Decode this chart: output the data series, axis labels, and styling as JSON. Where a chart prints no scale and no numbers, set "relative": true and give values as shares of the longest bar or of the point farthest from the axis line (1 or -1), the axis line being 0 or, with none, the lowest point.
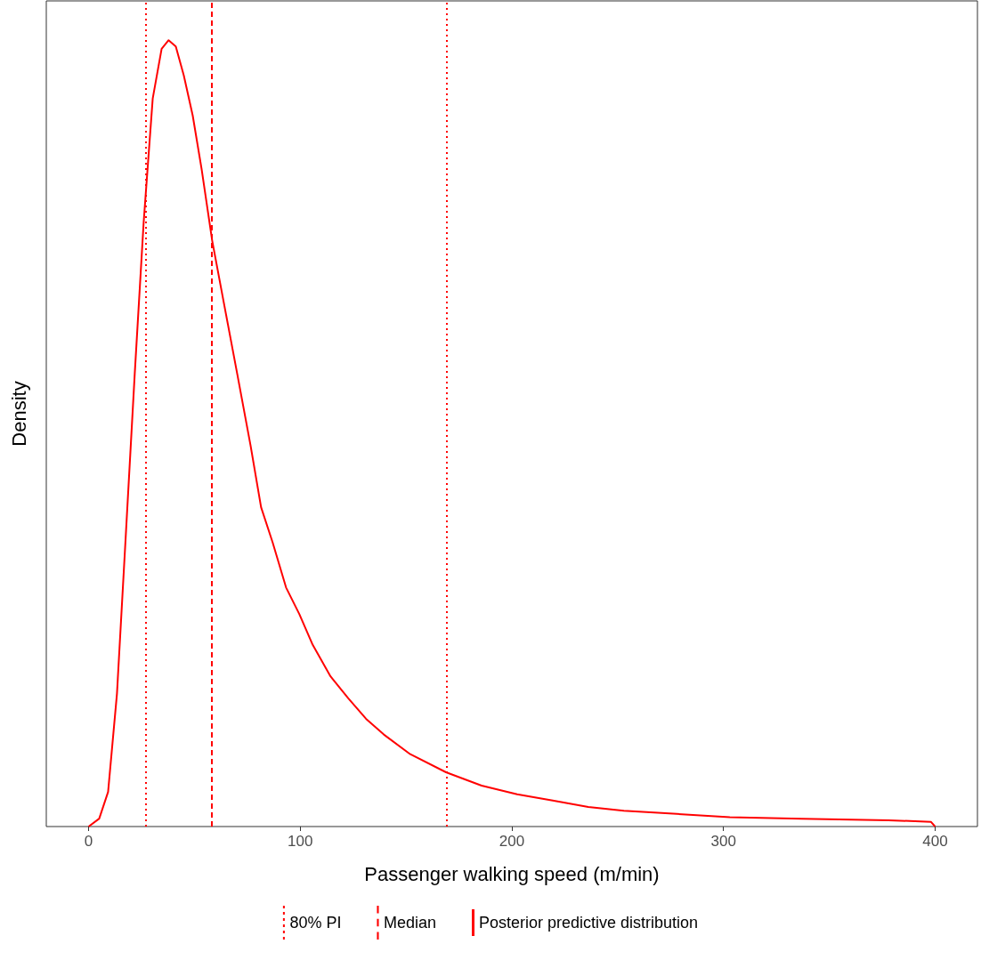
{
  "chart_data": {
    "type": "line",
    "relative": true,
    "xlabel": "Passenger walking speed (m/min)",
    "ylabel": "Density",
    "xlim": [
      -20,
      420
    ],
    "xticks": [
      0,
      100,
      200,
      300,
      400
    ],
    "grid": false,
    "legend": "bottom",
    "marker": "none",
    "tick_labels": "x",
    "series": [
      {
        "name": "Posterior predictive distribution",
        "color": "#ff0000",
        "line_style": "solid",
        "x": [
          0,
          5,
          9.2,
          13.4,
          17.6,
          21.8,
          26,
          30.3,
          34.5,
          37.8,
          41.2,
          45,
          49.2,
          53.4,
          58.4,
          63.9,
          70.2,
          76.5,
          81.5,
          87,
          93.3,
          99.6,
          105.9,
          114.3,
          122.7,
          131.1,
          139.5,
          152,
          168.9,
          185.7,
          202.5,
          219.3,
          236.1,
          252.9,
          278,
          303,
          337,
          378,
          398,
          400
        ],
        "values": [
          0,
          0.01,
          0.044,
          0.169,
          0.372,
          0.576,
          0.768,
          0.926,
          0.989,
          1,
          0.992,
          0.955,
          0.904,
          0.836,
          0.745,
          0.666,
          0.576,
          0.485,
          0.406,
          0.361,
          0.304,
          0.27,
          0.231,
          0.191,
          0.163,
          0.137,
          0.117,
          0.092,
          0.069,
          0.052,
          0.041,
          0.033,
          0.025,
          0.02,
          0.016,
          0.012,
          0.01,
          0.008,
          0.006,
          0
        ]
      }
    ],
    "ref_lines": [
      {
        "axis": "x",
        "value": 27,
        "label": "80% PI",
        "color": "#ff0000",
        "line_style": "dotted"
      },
      {
        "axis": "x",
        "value": 58,
        "label": "Median",
        "color": "#ff0000",
        "line_style": "dashed"
      },
      {
        "axis": "x",
        "value": 169,
        "color": "#ff0000",
        "line_style": "dotted"
      }
    ]
  }
}
